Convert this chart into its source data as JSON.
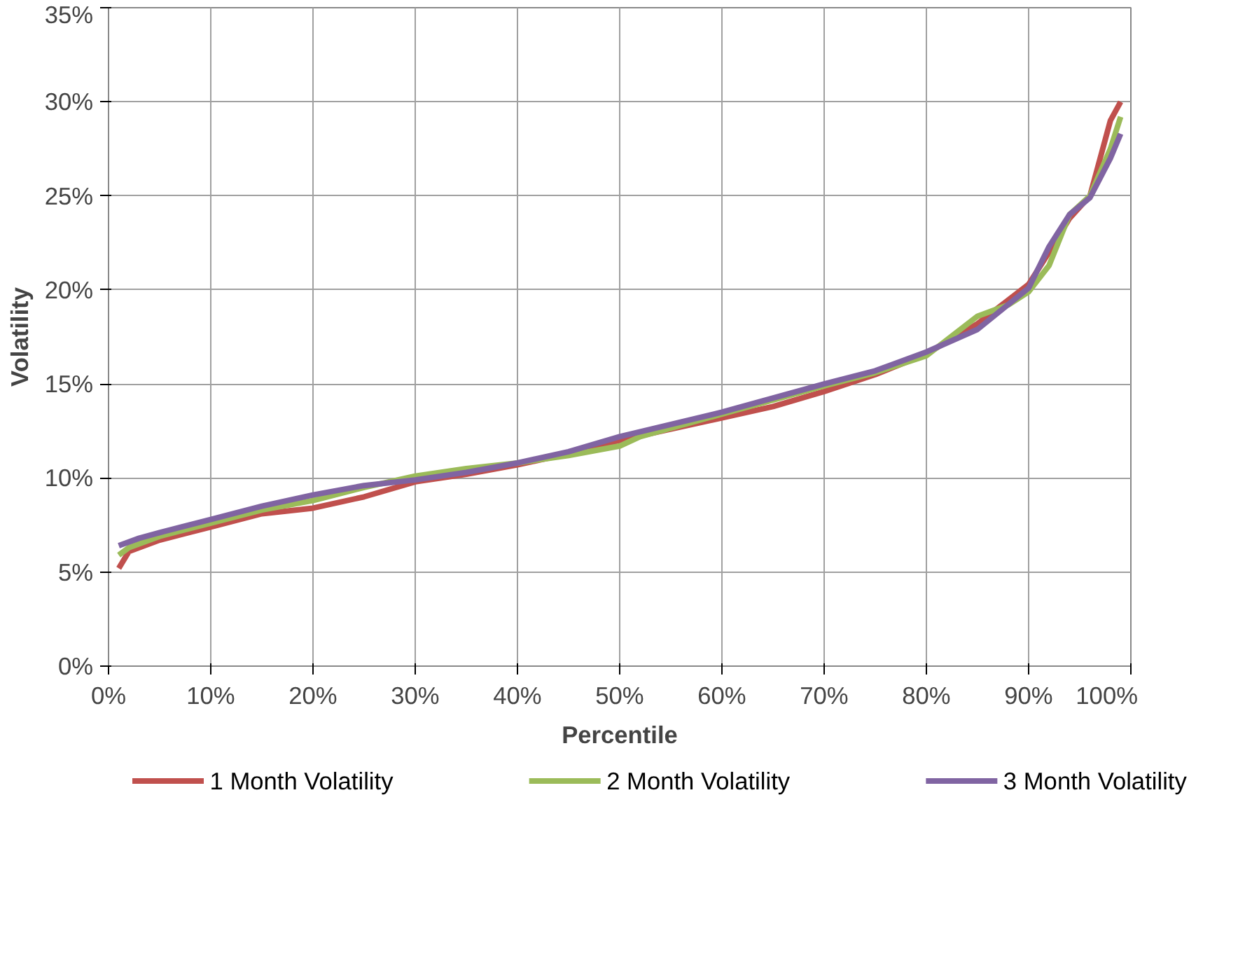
{
  "chart_data": {
    "type": "line",
    "xlabel": "Percentile",
    "ylabel": "Volatility",
    "xlim": [
      0,
      100
    ],
    "xticks": [
      {
        "value": 0,
        "label": "0%"
      },
      {
        "value": 10,
        "label": "10%"
      },
      {
        "value": 20,
        "label": "20%"
      },
      {
        "value": 30,
        "label": "30%"
      },
      {
        "value": 40,
        "label": "40%"
      },
      {
        "value": 50,
        "label": "50%"
      },
      {
        "value": 60,
        "label": "60%"
      },
      {
        "value": 70,
        "label": "70%"
      },
      {
        "value": 80,
        "label": "80%"
      },
      {
        "value": 90,
        "label": "90%"
      },
      {
        "value": 100,
        "label": "100%"
      }
    ],
    "ylim": [
      0,
      35
    ],
    "yticks": [
      {
        "value": 0,
        "label": "0%"
      },
      {
        "value": 5,
        "label": "5%"
      },
      {
        "value": 10,
        "label": "10%"
      },
      {
        "value": 15,
        "label": "15%"
      },
      {
        "value": 20,
        "label": "20%"
      },
      {
        "value": 25,
        "label": "25%"
      },
      {
        "value": 30,
        "label": "30%"
      },
      {
        "value": 35,
        "label": "35%"
      }
    ],
    "grid": true,
    "legend": "bottom",
    "series": [
      {
        "name": "1 Month Volatility",
        "color": "#c0504d",
        "x": [
          1,
          2,
          5,
          10,
          15,
          20,
          25,
          30,
          35,
          40,
          45,
          50,
          55,
          60,
          65,
          70,
          75,
          80,
          85,
          90,
          92,
          94,
          96,
          98,
          99
        ],
        "values": [
          5.2,
          6.1,
          6.7,
          7.4,
          8.1,
          8.4,
          9.0,
          9.8,
          10.2,
          10.7,
          11.3,
          12.0,
          12.6,
          13.2,
          13.8,
          14.6,
          15.5,
          16.6,
          18.2,
          20.3,
          22.0,
          23.8,
          25.0,
          29.0,
          30.0
        ]
      },
      {
        "name": "2 Month Volatility",
        "color": "#9bbb59",
        "x": [
          1,
          2,
          5,
          10,
          15,
          20,
          25,
          30,
          35,
          40,
          45,
          50,
          52,
          60,
          70,
          75,
          80,
          85,
          88,
          90,
          92,
          94,
          96,
          98,
          99
        ],
        "values": [
          5.9,
          6.3,
          6.9,
          7.6,
          8.3,
          8.8,
          9.5,
          10.1,
          10.5,
          10.8,
          11.2,
          11.7,
          12.2,
          13.4,
          14.9,
          15.6,
          16.5,
          18.6,
          19.2,
          19.9,
          21.3,
          24.0,
          25.0,
          27.5,
          29.2
        ]
      },
      {
        "name": "3 Month Volatility",
        "color": "#8064a2",
        "x": [
          1,
          3,
          5,
          10,
          15,
          20,
          25,
          30,
          35,
          40,
          45,
          50,
          60,
          70,
          75,
          80,
          85,
          90,
          92,
          94,
          96,
          98,
          99
        ],
        "values": [
          6.4,
          6.8,
          7.1,
          7.8,
          8.5,
          9.1,
          9.6,
          9.9,
          10.3,
          10.8,
          11.4,
          12.2,
          13.5,
          15.0,
          15.7,
          16.7,
          17.9,
          20.1,
          22.3,
          24.0,
          24.9,
          27.0,
          28.3
        ]
      }
    ]
  }
}
